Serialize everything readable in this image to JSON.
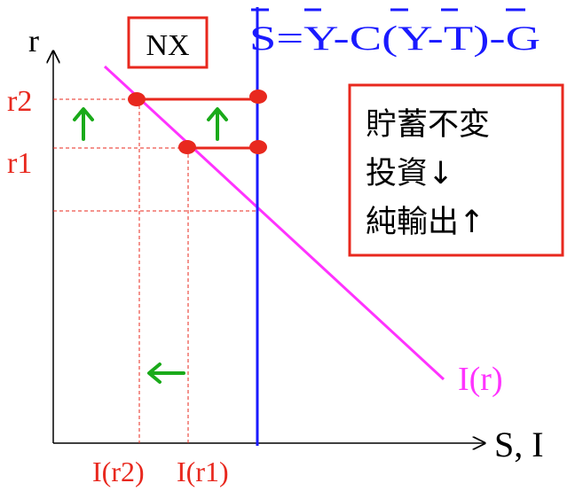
{
  "axes": {
    "y_label": "r",
    "x_label": "S, I"
  },
  "labels": {
    "r2": "r2",
    "r1": "r1",
    "i_r2": "I(r2)",
    "i_r1": "I(r1)",
    "investment_curve": "I(r)",
    "savings_equation": "S=Y-C(Y-T)-G",
    "nx_box": "NX"
  },
  "summary_box": {
    "line1": "貯蓄不変",
    "line2": "投資↓",
    "line3": "純輸出↑"
  },
  "colors": {
    "savings_line": "#1a1aff",
    "investment_line": "#ff33ff",
    "rate_labels": "#e8281e",
    "nx_segments": "#e8281e",
    "arrows": "#1aaa1a",
    "box_border": "#e8281e",
    "axes": "#000000"
  },
  "icons": [
    "up-arrow-icon",
    "up-arrow-icon",
    "left-arrow-icon"
  ]
}
